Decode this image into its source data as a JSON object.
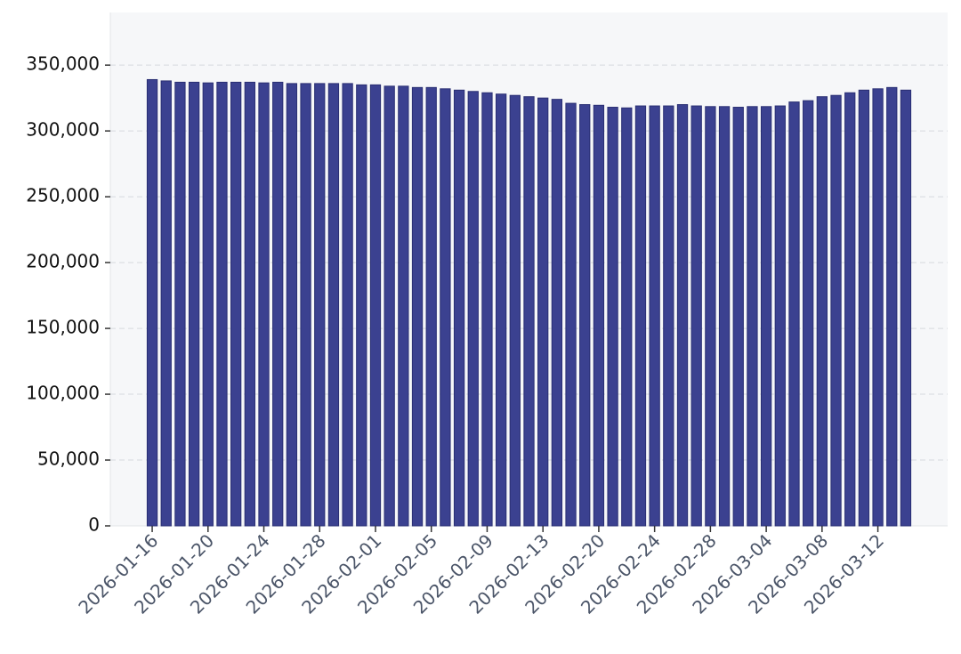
{
  "chart_data": {
    "type": "bar",
    "categories": [
      "2026-01-16",
      null,
      null,
      null,
      "2026-01-20",
      null,
      null,
      null,
      "2026-01-24",
      null,
      null,
      null,
      "2026-01-28",
      null,
      null,
      null,
      "2026-02-01",
      null,
      null,
      null,
      "2026-02-05",
      null,
      null,
      null,
      "2026-02-09",
      null,
      null,
      null,
      "2026-02-13",
      null,
      null,
      null,
      "2026-02-20",
      null,
      null,
      null,
      "2026-02-24",
      null,
      null,
      null,
      "2026-02-28",
      null,
      null,
      null,
      "2026-03-04",
      null,
      null,
      null,
      "2026-03-08",
      null,
      null,
      null,
      "2026-03-12",
      null,
      null
    ],
    "values": [
      339000,
      338000,
      337000,
      337000,
      336500,
      337000,
      337000,
      337000,
      336500,
      337000,
      336000,
      336000,
      336000,
      336000,
      336000,
      335000,
      335000,
      334000,
      334000,
      333000,
      333000,
      332000,
      331000,
      330000,
      329000,
      328000,
      327000,
      326000,
      325000,
      324000,
      321000,
      320000,
      319500,
      318000,
      317500,
      319000,
      319000,
      319000,
      320000,
      319000,
      318500,
      318500,
      318000,
      318500,
      318500,
      319000,
      322000,
      323000,
      326000,
      327000,
      329000,
      331000,
      332000,
      333000,
      331000
    ],
    "color": "#3b4190",
    "ylim": [
      0,
      390000
    ],
    "yticks": [
      0,
      {
        "value": 50000,
        "label": "50,000"
      },
      {
        "value": 100000,
        "label": "100,000"
      },
      {
        "value": 150000,
        "label": "150,000"
      },
      {
        "value": 200000,
        "label": "200,000"
      },
      {
        "value": 250000,
        "label": "250,000"
      },
      {
        "value": 300000,
        "label": "300,000"
      },
      {
        "value": 350000,
        "label": "350,000"
      }
    ],
    "grid": true
  }
}
